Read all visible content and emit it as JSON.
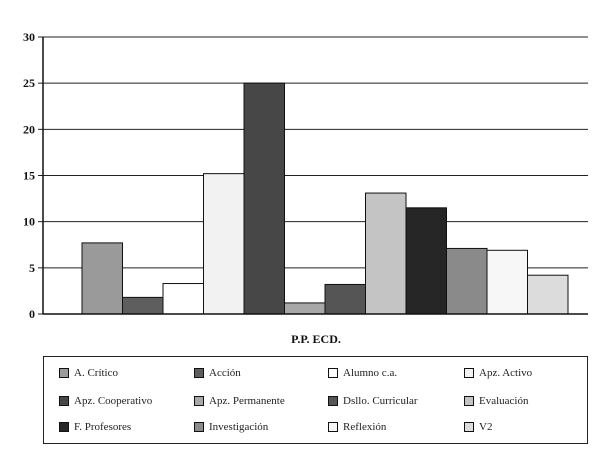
{
  "chart_data": {
    "type": "bar",
    "title": "",
    "xlabel": "P.P. ECD.",
    "ylabel": "",
    "ylim": [
      0,
      30
    ],
    "yticks": [
      0,
      5,
      10,
      15,
      20,
      25,
      30
    ],
    "grid": true,
    "legend": "bottom",
    "categories": [
      "P.P. ECD."
    ],
    "series": [
      {
        "name": "A. Crítico",
        "values": [
          7.7
        ],
        "color": "#9a9a9a"
      },
      {
        "name": "Acción",
        "values": [
          1.8
        ],
        "color": "#5e5e5e"
      },
      {
        "name": "Alumno c.a.",
        "values": [
          3.3
        ],
        "color": "#ffffff"
      },
      {
        "name": "Apz. Activo",
        "values": [
          15.2
        ],
        "color": "#f2f2f2"
      },
      {
        "name": "Apz. Cooperativo",
        "values": [
          25
        ],
        "color": "#474747"
      },
      {
        "name": "Apz. Permanente",
        "values": [
          1.2
        ],
        "color": "#a8a8a8"
      },
      {
        "name": "Dsllo. Curricular",
        "values": [
          3.2
        ],
        "color": "#555555"
      },
      {
        "name": "Evaluación",
        "values": [
          13.1
        ],
        "color": "#c4c4c4"
      },
      {
        "name": "F. Profesores",
        "values": [
          11.5
        ],
        "color": "#262626"
      },
      {
        "name": "Investigación",
        "values": [
          7.1
        ],
        "color": "#8a8a8a"
      },
      {
        "name": "Reflexión",
        "values": [
          6.9
        ],
        "color": "#f7f7f7"
      },
      {
        "name": "V2",
        "values": [
          4.2
        ],
        "color": "#dcdcdc"
      }
    ]
  }
}
